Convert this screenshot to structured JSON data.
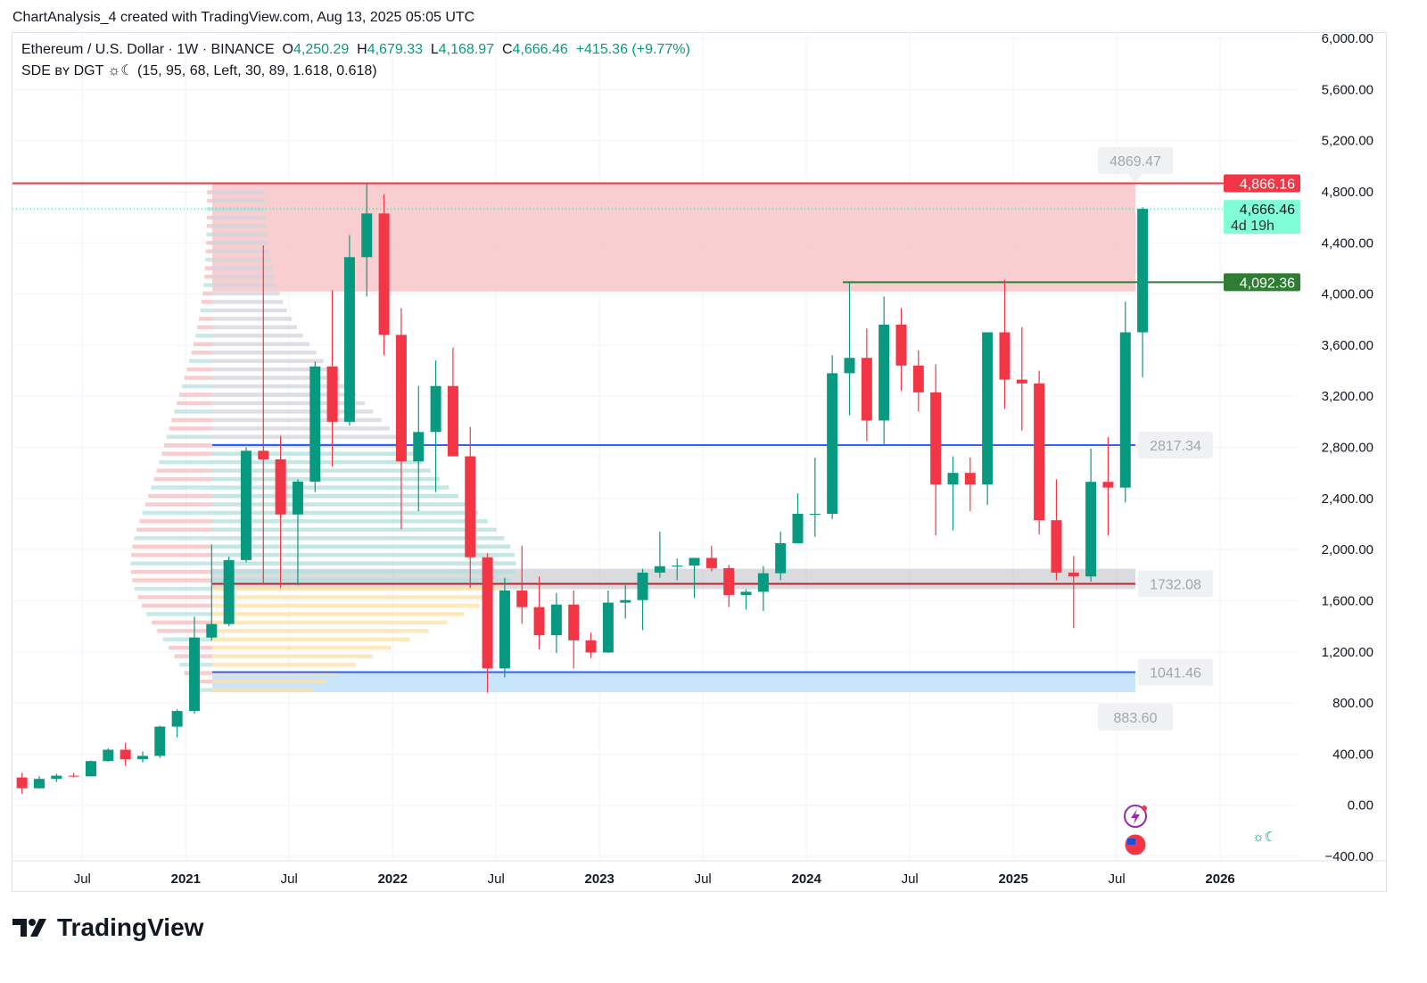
{
  "credit": "ChartAnalysis_4 created with TradingView.com, Aug 13, 2025 05:05 UTC",
  "legend": {
    "symbol": "Ethereum / U.S. Dollar · 1W · BINANCE",
    "o_label": "O",
    "o": "4,250.29",
    "h_label": "H",
    "h": "4,679.33",
    "l_label": "L",
    "l": "4,168.97",
    "c_label": "C",
    "c": "4,666.46",
    "change": "+415.36 (+9.77%)",
    "indicator": "SDE ʙʏ DGT ☼☾ (15, 95, 68, Left, 30, 89, 1.618, 0.618)"
  },
  "logo": "TradingView",
  "colors": {
    "up": "#089981",
    "down": "#f23645",
    "resistance": "#f23645",
    "zone_red": "#f7c5c8",
    "support_green": "#2e7d32",
    "blue": "#2962ff",
    "zone_blue": "#bbdefb",
    "last_price": "#80ffd6"
  },
  "chart_data": {
    "type": "candlestick",
    "interval_shown": "1W",
    "ylim": [
      -400,
      6000
    ],
    "yticks": [
      "6,000.00",
      "5,600.00",
      "5,200.00",
      "4,800.00",
      "4,400.00",
      "4,000.00",
      "3,600.00",
      "3,200.00",
      "2,800.00",
      "2,400.00",
      "2,000.00",
      "1,600.00",
      "1,200.00",
      "800.00",
      "400.00",
      "0.00",
      "−400.00"
    ],
    "ytick_values": [
      6000,
      5600,
      5200,
      4800,
      4400,
      4000,
      3600,
      3200,
      2800,
      2400,
      2000,
      1600,
      1200,
      800,
      400,
      0,
      -400
    ],
    "xticks": [
      {
        "label": "Jul",
        "date": "2020-07",
        "bold": false
      },
      {
        "label": "2021",
        "date": "2021-01",
        "bold": true
      },
      {
        "label": "Jul",
        "date": "2021-07",
        "bold": false
      },
      {
        "label": "2022",
        "date": "2022-01",
        "bold": true
      },
      {
        "label": "Jul",
        "date": "2022-07",
        "bold": false
      },
      {
        "label": "2023",
        "date": "2023-01",
        "bold": true
      },
      {
        "label": "Jul",
        "date": "2023-07",
        "bold": false
      },
      {
        "label": "2024",
        "date": "2024-01",
        "bold": true
      },
      {
        "label": "Jul",
        "date": "2024-07",
        "bold": false
      },
      {
        "label": "2025",
        "date": "2025-01",
        "bold": true
      },
      {
        "label": "Jul",
        "date": "2025-07",
        "bold": false
      },
      {
        "label": "2026",
        "date": "2026-01",
        "bold": true
      }
    ],
    "start": "2020-03",
    "ohlc": [
      [
        217,
        253,
        90,
        133
      ],
      [
        133,
        227,
        130,
        206
      ],
      [
        206,
        246,
        182,
        231
      ],
      [
        231,
        253,
        217,
        226
      ],
      [
        226,
        350,
        224,
        345
      ],
      [
        345,
        445,
        340,
        434
      ],
      [
        434,
        488,
        308,
        360
      ],
      [
        360,
        420,
        335,
        386
      ],
      [
        386,
        622,
        371,
        615
      ],
      [
        615,
        750,
        530,
        737
      ],
      [
        737,
        1475,
        715,
        1312
      ],
      [
        1312,
        2040,
        1290,
        1418
      ],
      [
        1418,
        1945,
        1400,
        1918
      ],
      [
        1918,
        2800,
        1900,
        2773
      ],
      [
        2773,
        4380,
        1730,
        2706
      ],
      [
        2706,
        2890,
        1700,
        2275
      ],
      [
        2275,
        2550,
        1720,
        2532
      ],
      [
        2532,
        3470,
        2450,
        3433
      ],
      [
        3433,
        4030,
        2650,
        3000
      ],
      [
        3000,
        4460,
        2970,
        4288
      ],
      [
        4288,
        4870,
        3980,
        4630
      ],
      [
        4630,
        4780,
        3520,
        3680
      ],
      [
        3680,
        3890,
        2160,
        2690
      ],
      [
        2690,
        3280,
        2300,
        2920
      ],
      [
        2920,
        3480,
        2450,
        3280
      ],
      [
        3280,
        3580,
        2770,
        2730
      ],
      [
        2730,
        2960,
        1700,
        1940
      ],
      [
        1940,
        1970,
        880,
        1070
      ],
      [
        1070,
        1780,
        1000,
        1680
      ],
      [
        1680,
        2030,
        1420,
        1550
      ],
      [
        1550,
        1790,
        1220,
        1330
      ],
      [
        1330,
        1660,
        1190,
        1570
      ],
      [
        1570,
        1680,
        1070,
        1290
      ],
      [
        1290,
        1350,
        1150,
        1195
      ],
      [
        1195,
        1680,
        1190,
        1585
      ],
      [
        1585,
        1740,
        1460,
        1605
      ],
      [
        1605,
        1850,
        1370,
        1820
      ],
      [
        1820,
        2140,
        1780,
        1870
      ],
      [
        1870,
        1930,
        1760,
        1875
      ],
      [
        1875,
        1930,
        1620,
        1935
      ],
      [
        1935,
        2030,
        1830,
        1855
      ],
      [
        1855,
        1880,
        1550,
        1645
      ],
      [
        1645,
        1690,
        1530,
        1670
      ],
      [
        1670,
        1870,
        1520,
        1815
      ],
      [
        1815,
        2140,
        1760,
        2050
      ],
      [
        2050,
        2440,
        2050,
        2280
      ],
      [
        2280,
        2720,
        2100,
        2280
      ],
      [
        2280,
        3520,
        2240,
        3380
      ],
      [
        3380,
        4090,
        3050,
        3500
      ],
      [
        3500,
        3730,
        2850,
        3010
      ],
      [
        3010,
        3980,
        2820,
        3760
      ],
      [
        3760,
        3890,
        3240,
        3440
      ],
      [
        3440,
        3560,
        3080,
        3230
      ],
      [
        3230,
        3450,
        2110,
        2510
      ],
      [
        2510,
        2730,
        2150,
        2600
      ],
      [
        2600,
        2720,
        2300,
        2510
      ],
      [
        2510,
        3690,
        2350,
        3700
      ],
      [
        3700,
        4110,
        3100,
        3330
      ],
      [
        3330,
        3740,
        2930,
        3300
      ],
      [
        3300,
        3400,
        2120,
        2230
      ],
      [
        2230,
        2550,
        1760,
        1820
      ],
      [
        1820,
        1950,
        1385,
        1790
      ],
      [
        1790,
        2790,
        1750,
        2530
      ],
      [
        2530,
        2880,
        2110,
        2485
      ],
      [
        2485,
        3940,
        2370,
        3700
      ],
      [
        3700,
        4679,
        3350,
        4666
      ]
    ],
    "levels": {
      "resistance": {
        "value": 4866.16,
        "label": "4,866.16"
      },
      "resistance_peak": {
        "value": 4869.47,
        "label": "4869.47"
      },
      "support_green": {
        "value": 4092.36,
        "label": "4,092.36"
      },
      "last_price": {
        "value": 4666.46,
        "label": "4,666.46",
        "countdown": "4d 19h"
      },
      "blue_mid": {
        "value": 2817.34,
        "label": "2817.34"
      },
      "poc": {
        "value": 1732.08,
        "label": "1732.08"
      },
      "blue_low": {
        "value": 1041.46,
        "label": "1041.46"
      },
      "zone_bottom": {
        "value": 883.6,
        "label": "883.60"
      }
    },
    "zones": {
      "red_zone": [
        4020,
        4866.16
      ],
      "blue_zone": [
        883.6,
        1041.46
      ],
      "gray_band": [
        1690,
        1850
      ]
    }
  }
}
